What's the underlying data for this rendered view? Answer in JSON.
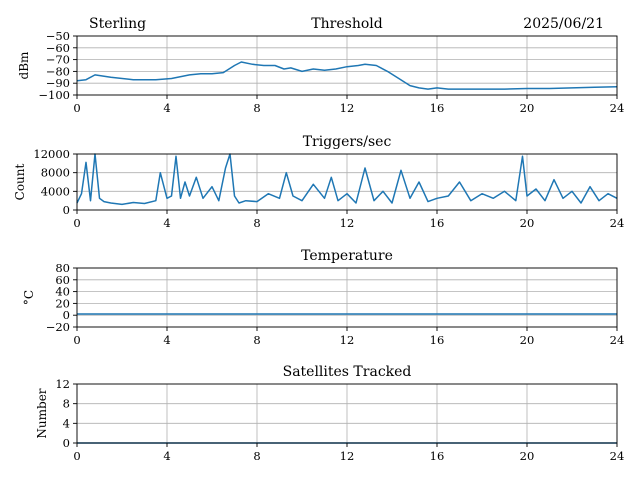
{
  "header": {
    "station": "Sterling",
    "date": "2025/06/21"
  },
  "chart_data": [
    {
      "type": "line",
      "title": "Threshold",
      "ylabel": "dBm",
      "xlim": [
        0,
        24
      ],
      "ylim": [
        -100,
        -50
      ],
      "xticks": [
        0,
        4,
        8,
        12,
        16,
        20,
        24
      ],
      "yticks": [
        -100,
        -90,
        -80,
        -70,
        -60,
        -50
      ],
      "ytick_labels": [
        "−100",
        "−90",
        "−80",
        "−70",
        "−60",
        "−50"
      ],
      "grid": true,
      "series": [
        {
          "x": [
            0,
            0.4,
            0.8,
            1.5,
            2.5,
            3.5,
            4.2,
            5,
            5.5,
            6,
            6.5,
            7,
            7.3,
            7.8,
            8.3,
            8.8,
            9.2,
            9.5,
            10,
            10.5,
            11,
            11.5,
            12,
            12.5,
            12.8,
            13.3,
            13.8,
            14.3,
            14.8,
            15.2,
            15.6,
            16,
            16.5,
            17,
            18,
            19,
            20,
            21,
            22,
            23,
            24
          ],
          "y": [
            -88,
            -87,
            -83,
            -85,
            -87,
            -87,
            -86,
            -83,
            -82,
            -82,
            -81,
            -75,
            -72,
            -74,
            -75,
            -75,
            -78,
            -77,
            -80,
            -78,
            -79,
            -78,
            -76,
            -75,
            -74,
            -75,
            -80,
            -86,
            -92,
            -94,
            -95,
            -94,
            -95,
            -95,
            -95,
            -95,
            -94.5,
            -94.5,
            -94,
            -93.5,
            -93
          ]
        }
      ]
    },
    {
      "type": "line",
      "title": "Triggers/sec",
      "ylabel": "Count",
      "xlim": [
        0,
        24
      ],
      "ylim": [
        0,
        12000
      ],
      "xticks": [
        0,
        4,
        8,
        12,
        16,
        20,
        24
      ],
      "yticks": [
        0,
        4000,
        8000,
        12000
      ],
      "grid": true,
      "series": [
        {
          "x": [
            0,
            0.2,
            0.4,
            0.6,
            0.8,
            1.0,
            1.2,
            1.5,
            2.0,
            2.5,
            3.0,
            3.5,
            3.7,
            4.0,
            4.2,
            4.4,
            4.6,
            4.8,
            5.0,
            5.3,
            5.6,
            6.0,
            6.3,
            6.6,
            6.8,
            7.0,
            7.2,
            7.5,
            8.0,
            8.5,
            9.0,
            9.3,
            9.6,
            10.0,
            10.5,
            11.0,
            11.3,
            11.6,
            12.0,
            12.4,
            12.8,
            13.2,
            13.6,
            14.0,
            14.4,
            14.8,
            15.2,
            15.6,
            16.0,
            16.5,
            17.0,
            17.5,
            18.0,
            18.5,
            19.0,
            19.5,
            19.8,
            20.0,
            20.4,
            20.8,
            21.2,
            21.6,
            22.0,
            22.4,
            22.8,
            23.2,
            23.6,
            24.0
          ],
          "y": [
            1500,
            3500,
            10200,
            2000,
            12000,
            2500,
            1800,
            1500,
            1200,
            1600,
            1400,
            2000,
            8000,
            2500,
            3000,
            11500,
            2500,
            6000,
            3000,
            7000,
            2500,
            5000,
            2000,
            9000,
            12000,
            3000,
            1500,
            2000,
            1800,
            3500,
            2500,
            8000,
            3000,
            2000,
            5500,
            2500,
            7000,
            2000,
            3500,
            1500,
            9000,
            2000,
            4000,
            1500,
            8500,
            2500,
            6000,
            1800,
            2500,
            3000,
            6000,
            2000,
            3500,
            2500,
            4000,
            2000,
            11500,
            3000,
            4500,
            2000,
            6500,
            2500,
            4000,
            1500,
            5000,
            2000,
            3500,
            2500
          ]
        }
      ]
    },
    {
      "type": "line",
      "title": "Temperature",
      "ylabel": "°C",
      "xlim": [
        0,
        24
      ],
      "ylim": [
        -20,
        80
      ],
      "xticks": [
        0,
        4,
        8,
        12,
        16,
        20,
        24
      ],
      "yticks": [
        -20,
        0,
        20,
        40,
        60,
        80
      ],
      "ytick_labels": [
        "−20",
        "0",
        "20",
        "40",
        "60",
        "80"
      ],
      "grid": true,
      "series": [
        {
          "x": [
            0,
            24
          ],
          "y": [
            2,
            2
          ]
        }
      ]
    },
    {
      "type": "line",
      "title": "Satellites Tracked",
      "ylabel": "Number",
      "xlim": [
        0,
        24
      ],
      "ylim": [
        0,
        12
      ],
      "xticks": [
        0,
        4,
        8,
        12,
        16,
        20,
        24
      ],
      "yticks": [
        0,
        4,
        8,
        12
      ],
      "grid": true,
      "series": [
        {
          "x": [
            0,
            24
          ],
          "y": [
            0,
            0
          ]
        }
      ]
    }
  ],
  "colors": {
    "series": "#1f77b4",
    "grid": "#b0b0b0"
  }
}
